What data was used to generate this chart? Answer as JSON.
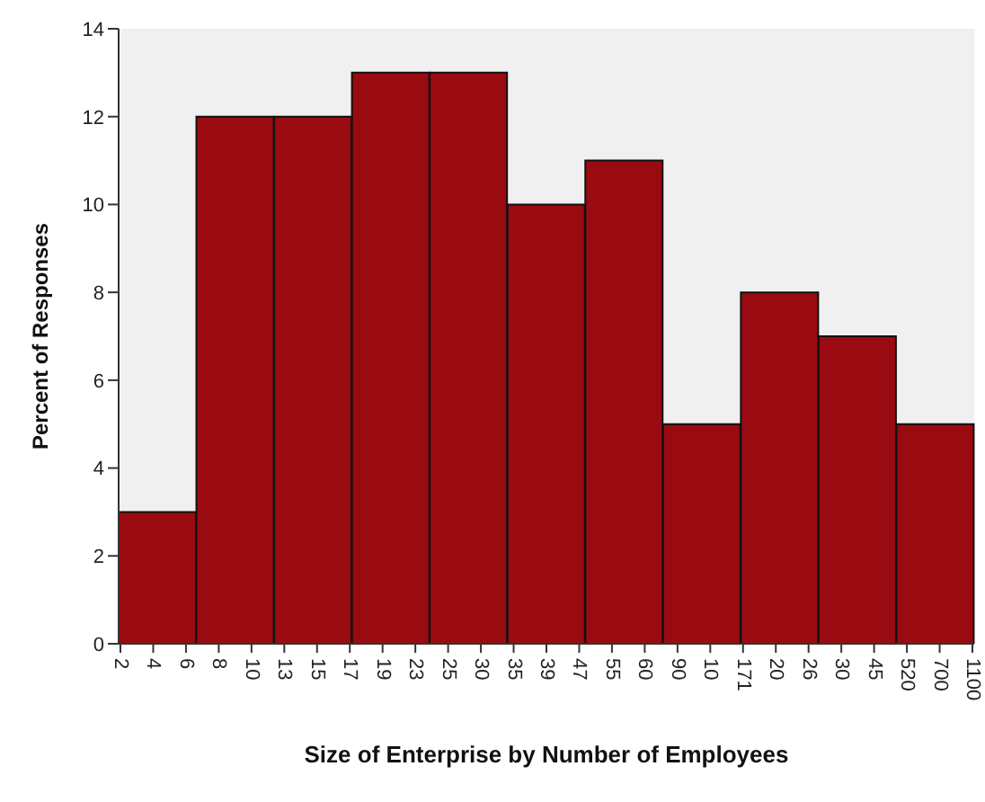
{
  "chart_data": {
    "type": "bar",
    "xlabel": "Size of Enterprise by Number of Employees",
    "ylabel": "Percent of Responses",
    "categories": [
      null,
      null,
      null,
      null,
      null,
      null,
      null,
      null,
      null,
      null,
      null
    ],
    "values": [
      3,
      12,
      12,
      13,
      13,
      10,
      11,
      5,
      8,
      7,
      5
    ],
    "color": "#990b10",
    "ylim": [
      0,
      14
    ],
    "yticks": [
      0,
      2,
      4,
      6,
      8,
      10,
      12,
      14
    ],
    "annotations": [
      "2",
      "4",
      "6",
      "8",
      "10",
      "13",
      "15",
      "17",
      "19",
      "23",
      "25",
      "30",
      "35",
      "39",
      "47",
      "55",
      "60",
      "90",
      "10",
      "171",
      "20",
      "26",
      "30",
      "45",
      "520",
      "700",
      "1100"
    ]
  }
}
